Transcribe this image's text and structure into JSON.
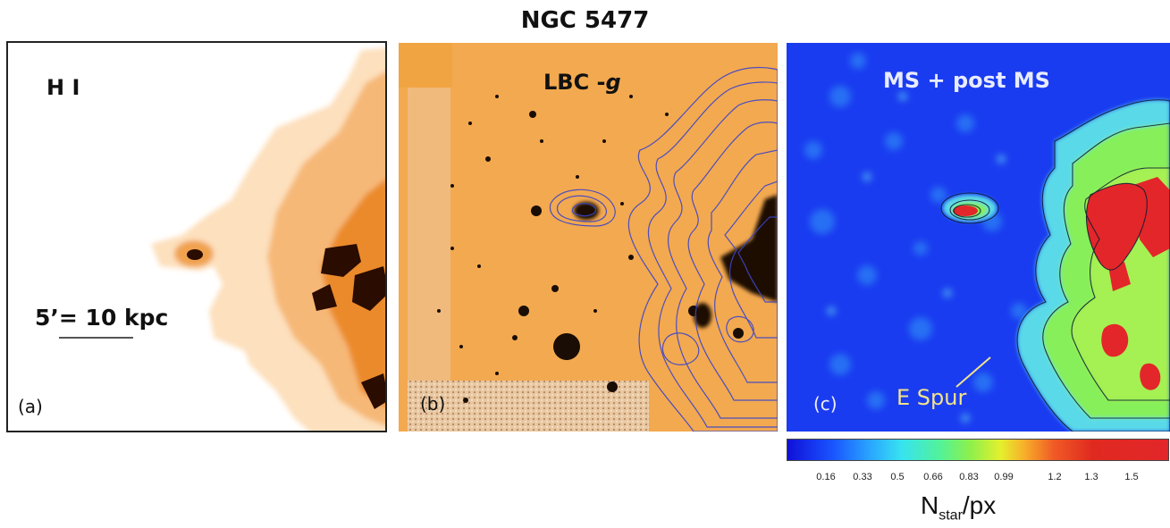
{
  "figure": {
    "title": "NGC 5477",
    "panels": [
      {
        "letter": "(a)",
        "label": "H I",
        "scale_label": "5’= 10 kpc"
      },
      {
        "letter": "(b)",
        "label_prefix": "LBC -",
        "label_italic": "g"
      },
      {
        "letter": "(c)",
        "label": "MS + post MS",
        "annotation": "E Spur"
      }
    ],
    "colorbar": {
      "ticks": [
        "0.16",
        "0.33",
        "0.5",
        "0.66",
        "0.83",
        "0.99",
        "1.2",
        "1.3",
        "1.5"
      ],
      "label_main": "N",
      "label_sub": "star",
      "label_tail": "/px"
    },
    "colors": {
      "hi_map": "#e8820a",
      "optical_background": "#f3a94f",
      "contours": "#3b45c9",
      "density_background": "#1a3cf0",
      "annotation": "#f0e38a"
    }
  }
}
